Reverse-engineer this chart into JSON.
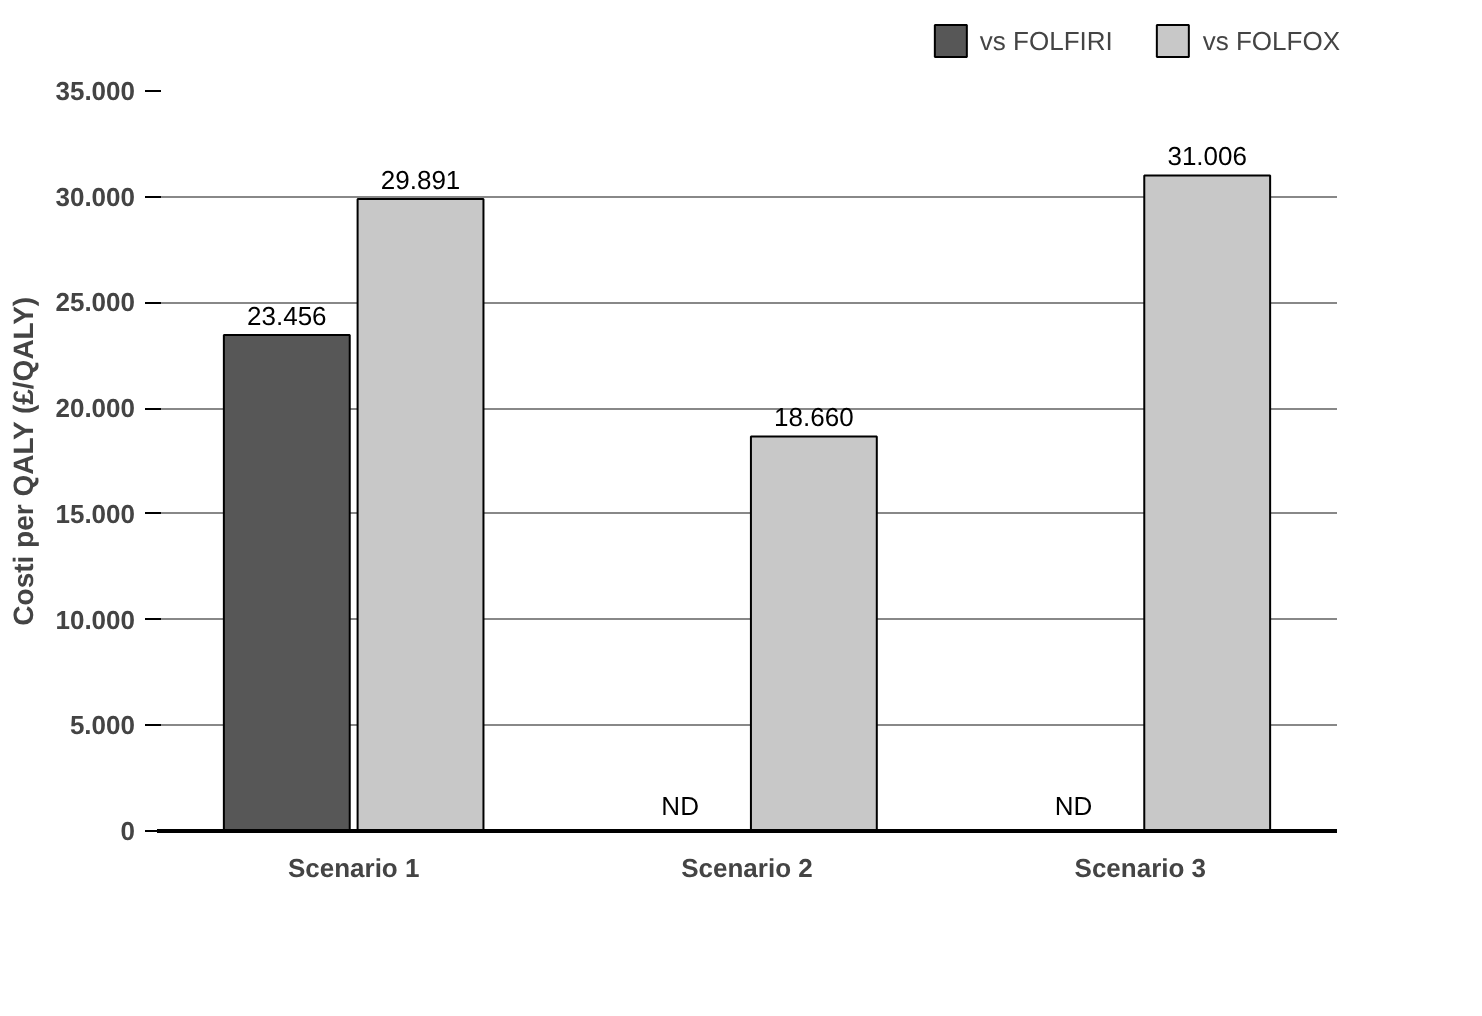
{
  "chart_data": {
    "type": "bar",
    "ylabel": "Costi per QALY (£/QALY)",
    "categories": [
      "Scenario 1",
      "Scenario 2",
      "Scenario 3"
    ],
    "series": [
      {
        "name": "vs FOLFIRI",
        "color": "#575757",
        "values": [
          23456,
          null,
          null
        ],
        "value_labels": [
          "23.456",
          "ND",
          "ND"
        ]
      },
      {
        "name": "vs FOLFOX",
        "color": "#c8c8c8",
        "values": [
          29891,
          18660,
          31006
        ],
        "value_labels": [
          "29.891",
          "18.660",
          "31.006"
        ]
      }
    ],
    "ylim": [
      0,
      35000
    ],
    "yticks": [
      0,
      {
        "value": 5000,
        "label": "5.000"
      },
      {
        "value": 10000,
        "label": "10.000"
      },
      {
        "value": 15000,
        "label": "15.000"
      },
      {
        "value": 20000,
        "label": "20.000"
      },
      {
        "value": 25000,
        "label": "25.000"
      },
      {
        "value": 30000,
        "label": "30.000"
      },
      {
        "value": 35000,
        "label": "35.000"
      }
    ],
    "grid": "y",
    "legend": "top right"
  }
}
